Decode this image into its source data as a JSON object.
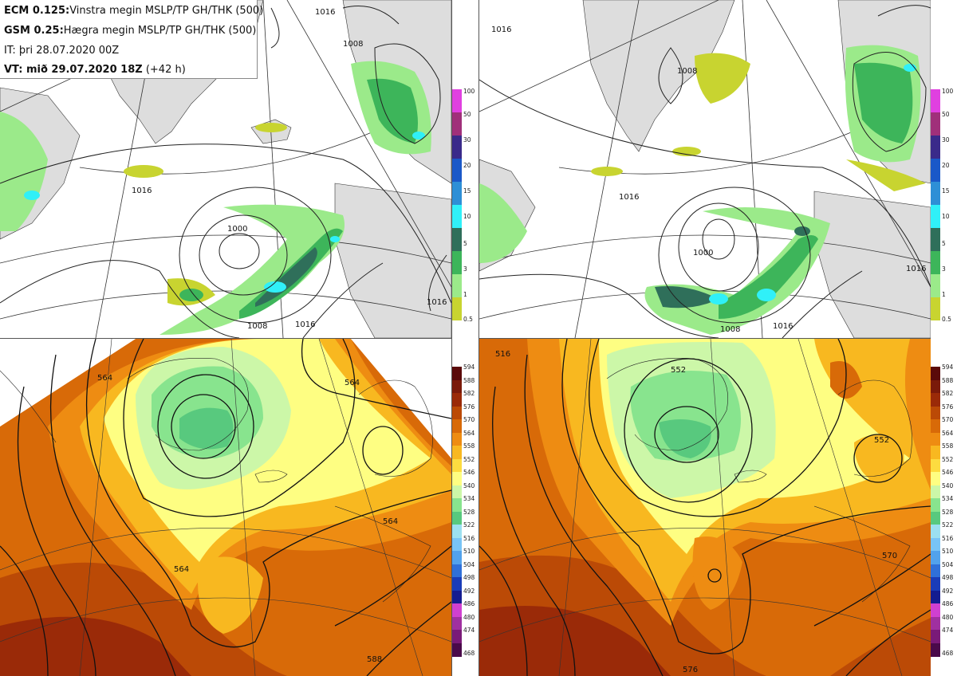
{
  "info": {
    "ecm_label": "ECM 0.125:",
    "ecm_text": "Vinstra megin MSLP/TP GH/THK (500)",
    "gsm_label": "GSM 0.25:",
    "gsm_text": "Hægra megin MSLP/TP GH/THK (500)",
    "it_text": "IT: þri 28.07.2020 00Z",
    "vt_label": "VT: mið 29.07.2020 18Z",
    "vt_text": "(+42 h)"
  },
  "precip_legend": {
    "levels": [
      "100",
      "50",
      "30",
      "20",
      "15",
      "10",
      "5",
      "3",
      "1",
      "0.5"
    ],
    "colors": [
      "#e040e0",
      "#a0307a",
      "#3a2a8a",
      "#1a58c8",
      "#2e8fd6",
      "#30f0f8",
      "#2f6f5a",
      "#3db55a",
      "#9bea8a",
      "#c8d430"
    ]
  },
  "thk_legend": {
    "levels": [
      "594",
      "588",
      "582",
      "576",
      "570",
      "564",
      "558",
      "552",
      "546",
      "540",
      "534",
      "528",
      "522",
      "516",
      "510",
      "504",
      "498",
      "492",
      "486",
      "480",
      "474",
      "468"
    ],
    "colors": [
      "#5a0a0a",
      "#7a1a0a",
      "#9a2a08",
      "#bb4a06",
      "#d86a08",
      "#ee8c12",
      "#f8b820",
      "#fddc40",
      "#fefe82",
      "#ccf7a8",
      "#88e48e",
      "#58c97e",
      "#9ce0f0",
      "#78c4f6",
      "#52a2ec",
      "#3070d8",
      "#1a3cb8",
      "#141c90",
      "#d040d0",
      "#a030a0",
      "#7a1a78",
      "#4a0a4a"
    ]
  },
  "mslp_labels": {
    "top_left": [
      "1016",
      "1008",
      "1016",
      "1000",
      "1008",
      "1016",
      "1016"
    ],
    "top_right": [
      "1016",
      "1008",
      "1016",
      "1000",
      "1008",
      "1016",
      "1016"
    ]
  },
  "gh_labels": {
    "bottom_left": [
      "564",
      "564",
      "564",
      "564",
      "588"
    ],
    "bottom_right": [
      "516",
      "552",
      "552",
      "570",
      "576"
    ]
  }
}
